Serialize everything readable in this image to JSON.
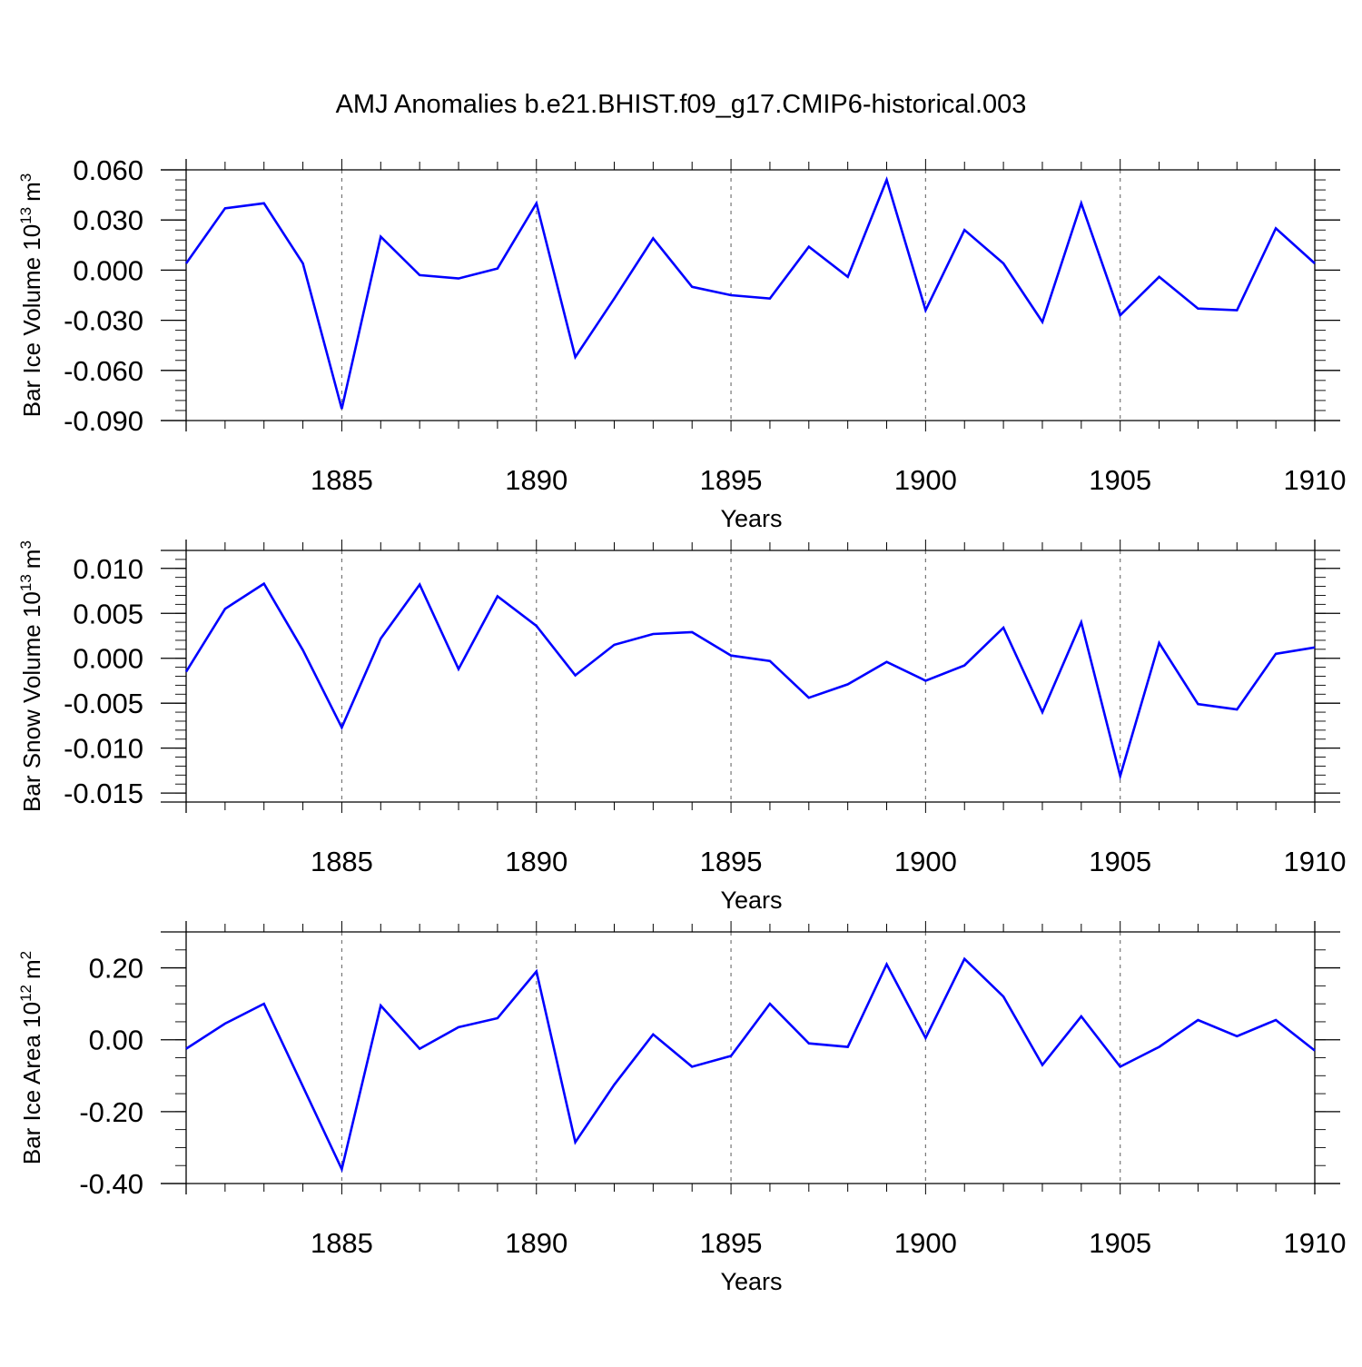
{
  "title": "AMJ Anomalies b.e21.BHIST.f09_g17.CMIP6-historical.003",
  "colors": {
    "line": "#0000ff",
    "axis": "#000000",
    "grid": "#777777"
  },
  "chart_data": [
    {
      "type": "line",
      "ylabel": "Bar Ice Volume 10",
      "ylabel_exp": "13",
      "ylabel_unit": "m",
      "ylabel_unit_exp": "3",
      "xlabel": "Years",
      "xlim": [
        1881,
        1910
      ],
      "ylim": [
        -0.09,
        0.06
      ],
      "yticks": [
        0.06,
        0.03,
        0.0,
        -0.03,
        -0.06,
        -0.09
      ],
      "ytick_labels": [
        "0.060",
        "0.030",
        "0.000",
        "-0.030",
        "-0.060",
        "-0.090"
      ],
      "yminor": 0.006,
      "xticks": [
        1885,
        1890,
        1895,
        1900,
        1905,
        1910
      ],
      "xtick_labels": [
        "1885",
        "1890",
        "1895",
        "1900",
        "1905",
        "1910"
      ],
      "grid_x": [
        1885,
        1890,
        1895,
        1900,
        1905
      ],
      "x": [
        1881,
        1882,
        1883,
        1884,
        1885,
        1886,
        1887,
        1888,
        1889,
        1890,
        1891,
        1892,
        1893,
        1894,
        1895,
        1896,
        1897,
        1898,
        1899,
        1900,
        1901,
        1902,
        1903,
        1904,
        1905,
        1906,
        1907,
        1908,
        1909,
        1910
      ],
      "series": [
        {
          "name": "Bar Ice Volume",
          "values": [
            0.004,
            0.037,
            0.04,
            0.004,
            -0.083,
            0.02,
            -0.003,
            -0.005,
            0.001,
            0.04,
            -0.052,
            -0.017,
            0.019,
            -0.01,
            -0.015,
            -0.017,
            0.014,
            -0.004,
            0.054,
            -0.024,
            0.024,
            0.004,
            -0.031,
            0.04,
            -0.027,
            -0.004,
            -0.023,
            -0.024,
            0.025,
            0.004
          ]
        }
      ]
    },
    {
      "type": "line",
      "ylabel": "Bar Snow Volume 10",
      "ylabel_exp": "13",
      "ylabel_unit": "m",
      "ylabel_unit_exp": "3",
      "xlabel": "Years",
      "xlim": [
        1881,
        1910
      ],
      "ylim": [
        -0.016,
        0.012
      ],
      "yticks": [
        0.01,
        0.005,
        0.0,
        -0.005,
        -0.01,
        -0.015
      ],
      "ytick_labels": [
        "0.010",
        "0.005",
        "0.000",
        "-0.005",
        "-0.010",
        "-0.015"
      ],
      "yminor": 0.001,
      "xticks": [
        1885,
        1890,
        1895,
        1900,
        1905,
        1910
      ],
      "xtick_labels": [
        "1885",
        "1890",
        "1895",
        "1900",
        "1905",
        "1910"
      ],
      "grid_x": [
        1885,
        1890,
        1895,
        1900,
        1905
      ],
      "x": [
        1881,
        1882,
        1883,
        1884,
        1885,
        1886,
        1887,
        1888,
        1889,
        1890,
        1891,
        1892,
        1893,
        1894,
        1895,
        1896,
        1897,
        1898,
        1899,
        1900,
        1901,
        1902,
        1903,
        1904,
        1905,
        1906,
        1907,
        1908,
        1909,
        1910
      ],
      "series": [
        {
          "name": "Bar Snow Volume",
          "values": [
            -0.0015,
            0.0055,
            0.0083,
            0.0009,
            -0.0077,
            0.0022,
            0.0082,
            -0.0012,
            0.0069,
            0.0036,
            -0.0019,
            0.0015,
            0.0027,
            0.0029,
            0.0003,
            -0.0003,
            -0.0044,
            -0.0029,
            -0.0004,
            -0.0025,
            -0.0008,
            0.0034,
            -0.006,
            0.004,
            -0.0131,
            0.0017,
            -0.0051,
            -0.0057,
            0.0005,
            0.0012
          ]
        }
      ]
    },
    {
      "type": "line",
      "ylabel": "Bar Ice Area 10",
      "ylabel_exp": "12",
      "ylabel_unit": "m",
      "ylabel_unit_exp": "2",
      "xlabel": "Years",
      "xlim": [
        1881,
        1910
      ],
      "ylim": [
        -0.4,
        0.3
      ],
      "yticks": [
        0.2,
        0.0,
        -0.2,
        -0.4
      ],
      "ytick_labels": [
        "0.20",
        "0.00",
        "-0.20",
        "-0.40"
      ],
      "yminor": 0.05,
      "xticks": [
        1885,
        1890,
        1895,
        1900,
        1905,
        1910
      ],
      "xtick_labels": [
        "1885",
        "1890",
        "1895",
        "1900",
        "1905",
        "1910"
      ],
      "grid_x": [
        1885,
        1890,
        1895,
        1900,
        1905
      ],
      "x": [
        1881,
        1882,
        1883,
        1884,
        1885,
        1886,
        1887,
        1888,
        1889,
        1890,
        1891,
        1892,
        1893,
        1894,
        1895,
        1896,
        1897,
        1898,
        1899,
        1900,
        1901,
        1902,
        1903,
        1904,
        1905,
        1906,
        1907,
        1908,
        1909,
        1910
      ],
      "series": [
        {
          "name": "Bar Ice Area",
          "values": [
            -0.025,
            0.045,
            0.1,
            -0.13,
            -0.36,
            0.095,
            -0.025,
            0.035,
            0.06,
            0.19,
            -0.285,
            -0.125,
            0.015,
            -0.075,
            -0.045,
            0.1,
            -0.01,
            -0.02,
            0.21,
            0.005,
            0.225,
            0.12,
            -0.07,
            0.065,
            -0.075,
            -0.02,
            0.055,
            0.01,
            0.055,
            -0.03
          ]
        }
      ]
    }
  ]
}
